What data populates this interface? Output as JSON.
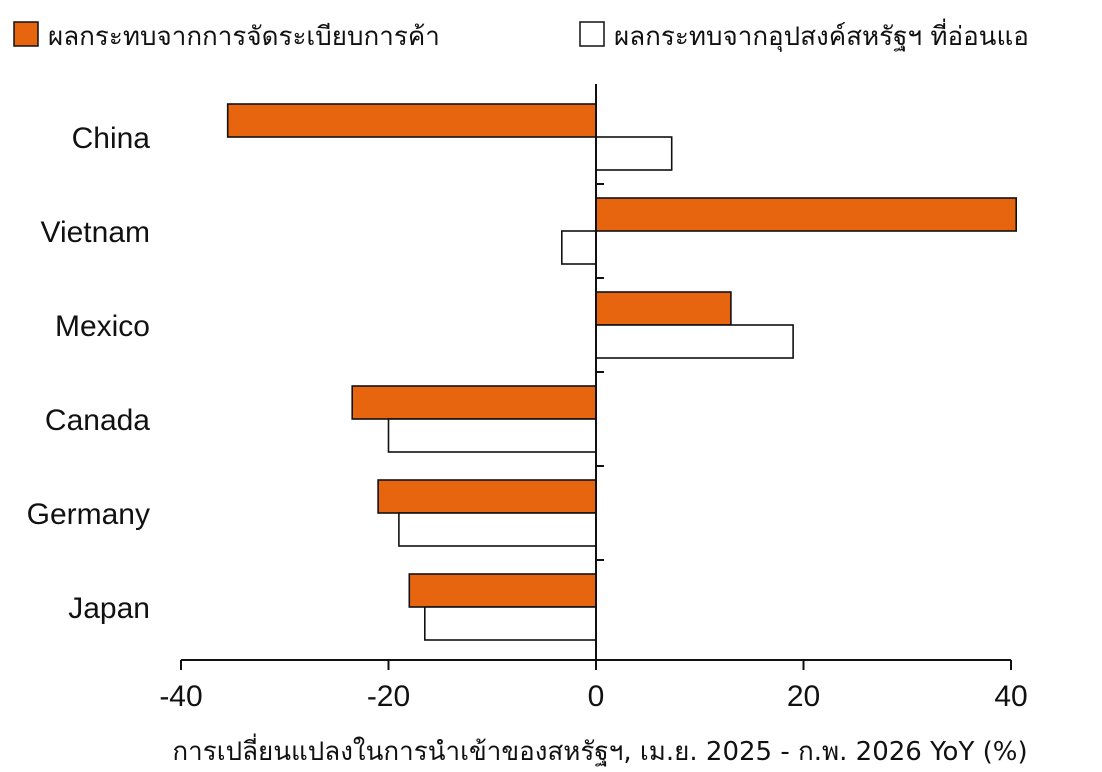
{
  "chart_data": {
    "type": "bar",
    "orientation": "horizontal",
    "categories": [
      "China",
      "Vietnam",
      "Mexico",
      "Canada",
      "Germany",
      "Japan"
    ],
    "series": [
      {
        "name": "ผลกระทบจากการจัดระเบียบการค้า",
        "color": "#E8650F",
        "values": [
          -35.5,
          40.5,
          13,
          -23.5,
          -21,
          -18
        ]
      },
      {
        "name": "ผลกระทบจากอุปสงค์สหรัฐฯ ที่อ่อนแอ",
        "color": "#FFFFFF",
        "values": [
          7.3,
          -3.3,
          19,
          -20,
          -19,
          -16.5
        ]
      }
    ],
    "xlabel": "การเปลี่ยนแปลงในการนำเข้าของสหรัฐฯ, เม.ย. 2025 - ก.พ. 2026 YoY (%)",
    "xlim": [
      -40,
      40
    ],
    "xticks": [
      -40,
      -20,
      0,
      20,
      40
    ],
    "grid": false,
    "legend_position": "top"
  }
}
